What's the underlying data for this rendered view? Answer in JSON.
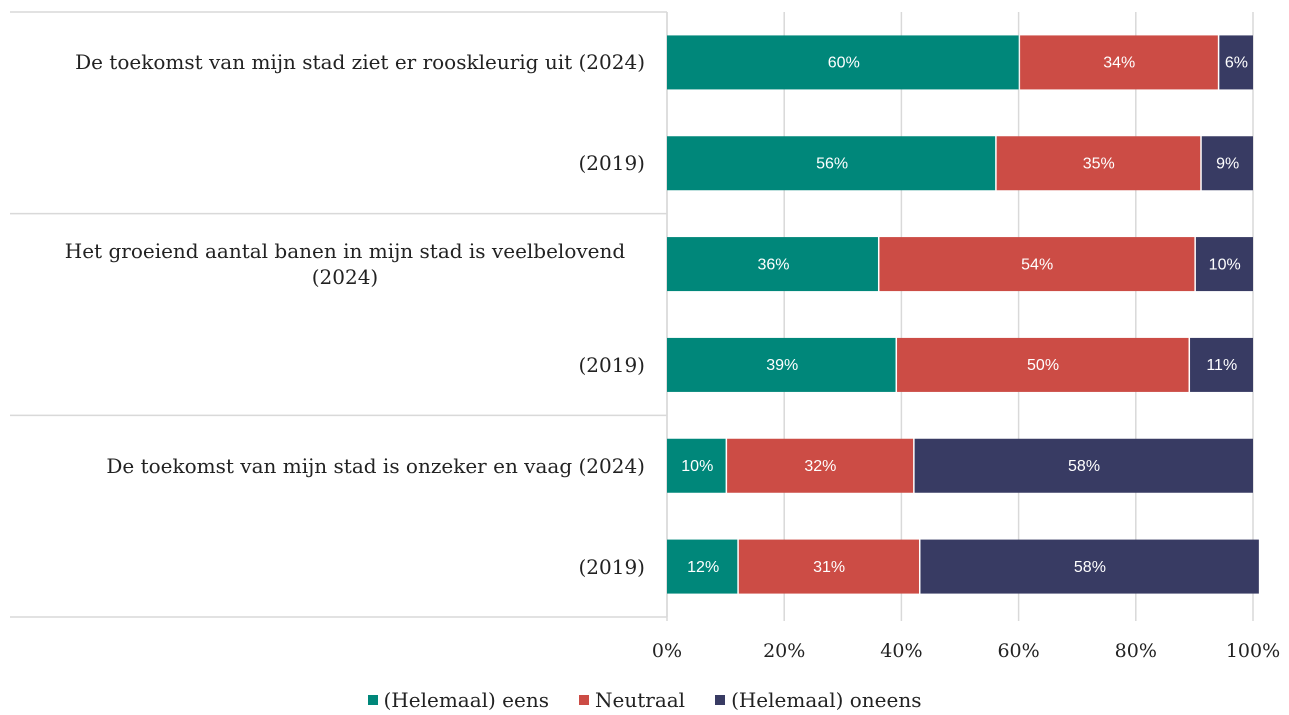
{
  "chart_data": {
    "type": "stacked-bar-horizontal",
    "categories": [
      "De toekomst van mijn stad ziet er rooskleurig uit (2024)",
      "(2019)",
      "Het groeiend aantal banen in mijn stad is veelbelovend (2024)",
      "(2019)",
      "De toekomst van mijn stad is onzeker en vaag (2024)",
      "(2019)"
    ],
    "series": [
      {
        "name": "(Helemaal) eens",
        "color": "#00877a",
        "values": [
          60,
          56,
          36,
          39,
          10,
          12
        ],
        "value_labels": [
          "60%",
          "56%",
          "36%",
          "39%",
          "10%",
          "12%"
        ]
      },
      {
        "name": "Neutraal",
        "color": "#cc4c45",
        "values": [
          34,
          35,
          54,
          50,
          32,
          31
        ],
        "value_labels": [
          "34%",
          "35%",
          "54%",
          "50%",
          "32%",
          "31%"
        ]
      },
      {
        "name": "(Helemaal) oneens",
        "color": "#383b63",
        "values": [
          6,
          9,
          10,
          11,
          58,
          58
        ],
        "value_labels": [
          "6%",
          "9%",
          "10%",
          "11%",
          "58%",
          "58%"
        ]
      }
    ],
    "xlim": [
      0,
      100
    ],
    "xticks": [
      {
        "value": 0,
        "label": "0%"
      },
      {
        "value": 20,
        "label": "20%"
      },
      {
        "value": 40,
        "label": "40%"
      },
      {
        "value": 60,
        "label": "60%"
      },
      {
        "value": 80,
        "label": "80%"
      },
      {
        "value": 100,
        "label": "100%"
      }
    ],
    "grid": true,
    "legend": "bottom"
  }
}
